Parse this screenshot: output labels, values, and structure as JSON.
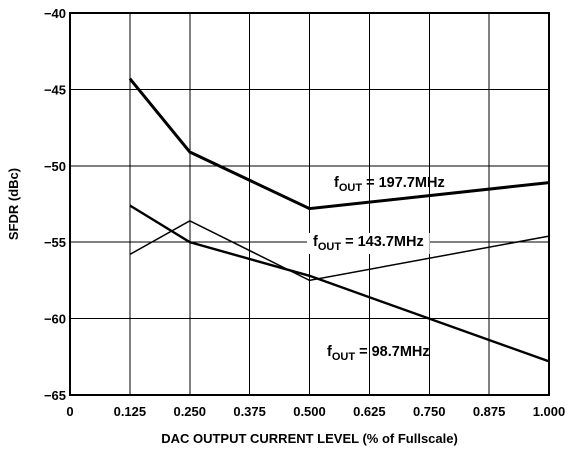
{
  "chart_data": {
    "type": "line",
    "title": "",
    "xlabel": "DAC OUTPUT CURRENT LEVEL (% of Fullscale)",
    "ylabel": "SFDR (dBc)",
    "xlim": [
      0,
      1.0
    ],
    "ylim": [
      -65,
      -40
    ],
    "x_ticks": [
      0,
      0.125,
      0.25,
      0.375,
      0.5,
      0.625,
      0.75,
      0.875,
      1.0
    ],
    "x_tick_labels": [
      "0",
      "0.125",
      "0.250",
      "0.375",
      "0.500",
      "0.625",
      "0.750",
      "0.875",
      "1.000"
    ],
    "y_ticks": [
      -40,
      -45,
      -50,
      -55,
      -60,
      -65
    ],
    "y_tick_labels": [
      "−40",
      "−45",
      "−50",
      "−55",
      "−60",
      "−65"
    ],
    "grid": true,
    "series": [
      {
        "label_main": "f",
        "label_sub": "OUT",
        "label_rest": " = 197.7MHz",
        "x": [
          0.125,
          0.25,
          0.5,
          1.0
        ],
        "y": [
          -44.3,
          -49.1,
          -52.8,
          -51.1
        ]
      },
      {
        "label_main": "f",
        "label_sub": "OUT",
        "label_rest": " = 143.7MHz",
        "x": [
          0.125,
          0.25,
          0.5,
          1.0
        ],
        "y": [
          -55.8,
          -53.6,
          -57.5,
          -54.6
        ]
      },
      {
        "label_main": "f",
        "label_sub": "OUT",
        "label_rest": " = 98.7MHz",
        "x": [
          0.125,
          0.25,
          0.5,
          1.0
        ],
        "y": [
          -52.6,
          -55.0,
          -57.2,
          -62.8
        ]
      }
    ]
  }
}
